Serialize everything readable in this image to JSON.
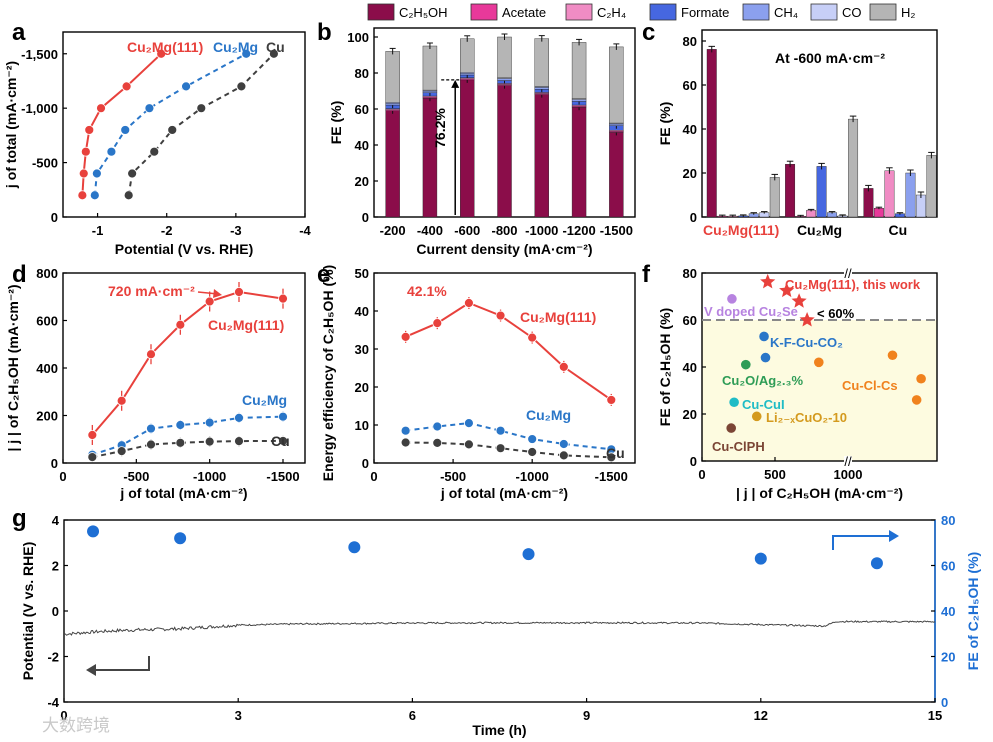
{
  "figure": {
    "panel_labels": [
      "a",
      "b",
      "c",
      "d",
      "e",
      "f",
      "g"
    ],
    "watermark": "大数跨境"
  },
  "legend_b": {
    "entries": [
      {
        "name": "C₂H₅OH",
        "color": "#8b0d4a"
      },
      {
        "name": "Acetate",
        "color": "#e8399a"
      },
      {
        "name": "C₂H₄",
        "color": "#f08cc4"
      },
      {
        "name": "Formate",
        "color": "#4667e0"
      },
      {
        "name": "CH₄",
        "color": "#8ba0ee"
      },
      {
        "name": "CO",
        "color": "#c7cff7"
      },
      {
        "name": "H₂",
        "color": "#b5b5b5"
      }
    ]
  },
  "chart_data": [
    {
      "panel": "a",
      "type": "line",
      "xlabel": "Potential (V vs. RHE)",
      "ylabel": "j of total (mA·cm⁻²)",
      "xlim": [
        -0.5,
        -4
      ],
      "ylim": [
        0,
        -1700
      ],
      "xticks": [
        -1,
        -2,
        -3,
        -4
      ],
      "xtick_labels": [
        "-1",
        "-2",
        "-3",
        "-4"
      ],
      "yticks": [
        0,
        -500,
        -1000,
        -1500
      ],
      "ytick_labels": [
        "0",
        "-500",
        "-1,000",
        "-1,500"
      ],
      "series": [
        {
          "name": "Cu₂Mg(111)",
          "color": "#e8413c",
          "style": "solid",
          "x": [
            -0.78,
            -0.8,
            -0.83,
            -0.88,
            -1.05,
            -1.42,
            -1.92
          ],
          "y": [
            -200,
            -400,
            -600,
            -800,
            -1000,
            -1200,
            -1500
          ]
        },
        {
          "name": "Cu₂Mg",
          "color": "#2a76c8",
          "style": "dashed",
          "x": [
            -0.96,
            -0.99,
            -1.2,
            -1.4,
            -1.75,
            -2.28,
            -3.15
          ],
          "y": [
            -200,
            -400,
            -600,
            -800,
            -1000,
            -1200,
            -1500
          ]
        },
        {
          "name": "Cu",
          "color": "#3f3f3f",
          "style": "dashed",
          "x": [
            -1.45,
            -1.5,
            -1.82,
            -2.08,
            -2.5,
            -3.08,
            -3.55
          ],
          "y": [
            -200,
            -400,
            -600,
            -800,
            -1000,
            -1200,
            -1500
          ]
        }
      ]
    },
    {
      "panel": "b",
      "type": "bar",
      "stacked": true,
      "xlabel": "Current density (mA·cm⁻²)",
      "ylabel": "FE (%)",
      "ylim": [
        0,
        105
      ],
      "yticks": [
        0,
        20,
        40,
        60,
        80,
        100
      ],
      "categories": [
        "-200",
        "-400",
        "-600",
        "-800",
        "-1000",
        "-1200",
        "-1500"
      ],
      "series": [
        {
          "name": "C₂H₅OH",
          "values": [
            59,
            66,
            76.2,
            73,
            68,
            61,
            47
          ]
        },
        {
          "name": "Acetate",
          "values": [
            0.6,
            0.6,
            0.6,
            0.6,
            0.6,
            0.6,
            0.6
          ]
        },
        {
          "name": "C₂H₄",
          "values": [
            0.6,
            0.6,
            0.6,
            0.6,
            0.6,
            0.6,
            0.6
          ]
        },
        {
          "name": "Formate",
          "values": [
            2,
            1.8,
            1.5,
            1.6,
            1.8,
            2,
            2.5
          ]
        },
        {
          "name": "CH₄",
          "values": [
            1,
            1,
            1,
            1,
            1,
            1,
            1
          ]
        },
        {
          "name": "CO",
          "values": [
            0.5,
            0.5,
            0.5,
            0.5,
            0.5,
            0.5,
            0.5
          ]
        },
        {
          "name": "H₂",
          "values": [
            28.3,
            24.5,
            18.6,
            22.7,
            26.6,
            31.3,
            42.3
          ]
        }
      ],
      "annotation": "76.2%"
    },
    {
      "panel": "c",
      "type": "bar",
      "xlabel": "",
      "ylabel": "FE (%)",
      "ylim": [
        0,
        85
      ],
      "yticks": [
        0,
        20,
        40,
        60,
        80
      ],
      "annotation": "At -600 mA·cm⁻²",
      "categories": [
        "Cu₂Mg(111)",
        "Cu₂Mg",
        "Cu"
      ],
      "category_colors": [
        "#e8413c",
        "#000000",
        "#000000"
      ],
      "series": [
        {
          "name": "C₂H₅OH",
          "values": [
            76.2,
            24,
            13
          ]
        },
        {
          "name": "Acetate",
          "values": [
            0.4,
            0.3,
            4
          ]
        },
        {
          "name": "C₂H₄",
          "values": [
            0.4,
            3,
            21
          ]
        },
        {
          "name": "Formate",
          "values": [
            0.5,
            23,
            1.5
          ]
        },
        {
          "name": "CH₄",
          "values": [
            1.5,
            2,
            20
          ]
        },
        {
          "name": "CO",
          "values": [
            2,
            0.5,
            10
          ]
        },
        {
          "name": "H₂",
          "values": [
            18,
            44.5,
            28
          ]
        }
      ]
    },
    {
      "panel": "d",
      "type": "line",
      "xlabel": "j of total (mA·cm⁻²)",
      "ylabel": "| j | of C₂H₅OH (mA·cm⁻²)",
      "xlim": [
        0,
        -1650
      ],
      "ylim": [
        0,
        800
      ],
      "xticks": [
        0,
        -500,
        -1000,
        -1500
      ],
      "xtick_labels": [
        "0",
        "-500",
        "-1000",
        "-1500"
      ],
      "yticks": [
        0,
        200,
        400,
        600,
        800
      ],
      "annotation": "720 mA·cm⁻²",
      "series": [
        {
          "name": "Cu₂Mg(111)",
          "color": "#e8413c",
          "style": "solid",
          "x": [
            -200,
            -400,
            -600,
            -800,
            -1000,
            -1200,
            -1500
          ],
          "y": [
            118,
            262,
            458,
            582,
            680,
            720,
            692
          ]
        },
        {
          "name": "Cu₂Mg",
          "color": "#2a76c8",
          "style": "dashed",
          "x": [
            -200,
            -400,
            -600,
            -800,
            -1000,
            -1200,
            -1500
          ],
          "y": [
            35,
            75,
            145,
            160,
            170,
            190,
            195
          ]
        },
        {
          "name": "Cu",
          "color": "#3f3f3f",
          "style": "dashed",
          "x": [
            -200,
            -400,
            -600,
            -800,
            -1000,
            -1200,
            -1500
          ],
          "y": [
            25,
            50,
            78,
            85,
            90,
            92,
            93
          ]
        }
      ]
    },
    {
      "panel": "e",
      "type": "line",
      "xlabel": "j of total (mA·cm⁻²)",
      "ylabel": "Energy efficiency of C₂H₅OH (%)",
      "xlim": [
        0,
        -1650
      ],
      "ylim": [
        0,
        50
      ],
      "xticks": [
        0,
        -500,
        -1000,
        -1500
      ],
      "xtick_labels": [
        "0",
        "-500",
        "-1000",
        "-1500"
      ],
      "yticks": [
        0,
        10,
        20,
        30,
        40,
        50
      ],
      "annotation": "42.1%",
      "series": [
        {
          "name": "Cu₂Mg(111)",
          "color": "#e8413c",
          "style": "solid",
          "x": [
            -200,
            -400,
            -600,
            -800,
            -1000,
            -1200,
            -1500
          ],
          "y": [
            33.2,
            36.8,
            42.1,
            38.8,
            33,
            25.3,
            16.6
          ]
        },
        {
          "name": "Cu₂Mg",
          "color": "#2a76c8",
          "style": "dashed",
          "x": [
            -200,
            -400,
            -600,
            -800,
            -1000,
            -1200,
            -1500
          ],
          "y": [
            8.5,
            9.6,
            10.5,
            8.5,
            6.3,
            5,
            3.6
          ]
        },
        {
          "name": "Cu",
          "color": "#3f3f3f",
          "style": "dashed",
          "x": [
            -200,
            -400,
            -600,
            -800,
            -1000,
            -1200,
            -1500
          ],
          "y": [
            5.4,
            5.3,
            4.9,
            3.9,
            2.9,
            2,
            1.5
          ]
        }
      ]
    },
    {
      "panel": "f",
      "type": "scatter",
      "xlabel": "| j | of C₂H₅OH (mA·cm⁻²)",
      "ylabel": "FE of C₂H₅OH (%)",
      "xlim": [
        0,
        2400
      ],
      "x_axis_break": "//",
      "xticks": [
        0,
        500,
        1000
      ],
      "ylim": [
        0,
        80
      ],
      "yticks": [
        0,
        20,
        40,
        60,
        80
      ],
      "threshold_y": 60,
      "threshold_label": "< 60%",
      "points": [
        {
          "label": "Cu₂Mg(111), this work",
          "color": "#e8413c",
          "marker": "star",
          "x": 450,
          "y": 76.2
        },
        {
          "label": "",
          "color": "#e8413c",
          "marker": "star",
          "x": 580,
          "y": 72.5
        },
        {
          "label": "",
          "color": "#e8413c",
          "marker": "star",
          "x": 665,
          "y": 68
        },
        {
          "label": "",
          "color": "#e8413c",
          "marker": "star",
          "x": 720,
          "y": 60
        },
        {
          "label": "V doped Cu₂Se",
          "color": "#b783e0",
          "marker": "circle",
          "x": 205,
          "y": 69
        },
        {
          "label": "K-F-Cu-CO₂",
          "color": "#2a76c8",
          "marker": "circle",
          "x": 425,
          "y": 53
        },
        {
          "label": "",
          "color": "#2a76c8",
          "marker": "circle",
          "x": 435,
          "y": 44
        },
        {
          "label": "Cu-Cl-Cs",
          "color": "#f0821e",
          "marker": "circle",
          "x": 800,
          "y": 42
        },
        {
          "label": "",
          "color": "#f0821e",
          "marker": "circle",
          "x": 1700,
          "y": 45
        },
        {
          "label": "",
          "color": "#f0821e",
          "marker": "circle",
          "x": 2150,
          "y": 35
        },
        {
          "label": "",
          "color": "#f0821e",
          "marker": "circle",
          "x": 2080,
          "y": 26
        },
        {
          "label": "Cu₂O/Ag₂.₃%",
          "color": "#2e9c56",
          "marker": "circle",
          "x": 300,
          "y": 41
        },
        {
          "label": "Cu-CuI",
          "color": "#1fbcc6",
          "marker": "circle",
          "x": 220,
          "y": 25
        },
        {
          "label": "Li₂₋ₓCuO₂-10",
          "color": "#d49a1e",
          "marker": "circle",
          "x": 375,
          "y": 19
        },
        {
          "label": "Cu-ClPH",
          "color": "#7b4535",
          "marker": "circle",
          "x": 200,
          "y": 14
        }
      ]
    },
    {
      "panel": "g",
      "type": "line",
      "xlabel": "Time (h)",
      "ylabel": "Potential (V vs. RHE)",
      "ylabel_right": "FE of C₂H₅OH (%)",
      "xlim": [
        0,
        15
      ],
      "xticks": [
        0,
        3,
        6,
        9,
        12,
        15
      ],
      "ylim": [
        -4,
        4
      ],
      "yticks": [
        -4,
        -2,
        0,
        2,
        4
      ],
      "ylim_right": [
        0,
        80
      ],
      "yticks_right": [
        0,
        20,
        40,
        60,
        80
      ],
      "series": [
        {
          "name": "Potential",
          "axis": "left",
          "color": "#444444",
          "x": [
            0,
            0.5,
            1,
            2,
            3,
            4,
            5,
            6,
            7,
            8,
            9,
            10,
            11,
            12,
            13.1,
            13.3,
            14,
            15
          ],
          "y": [
            -1.02,
            -0.92,
            -0.85,
            -0.78,
            -0.62,
            -0.57,
            -0.55,
            -0.53,
            -0.52,
            -0.52,
            -0.52,
            -0.52,
            -0.53,
            -0.6,
            -0.66,
            -0.46,
            -0.47,
            -0.47
          ]
        },
        {
          "name": "FE",
          "axis": "right",
          "color": "#1e6fd4",
          "marker": "circle",
          "x": [
            0.5,
            2,
            5,
            8,
            12,
            14
          ],
          "y": [
            75,
            72,
            68,
            65,
            63,
            61
          ]
        }
      ]
    }
  ]
}
